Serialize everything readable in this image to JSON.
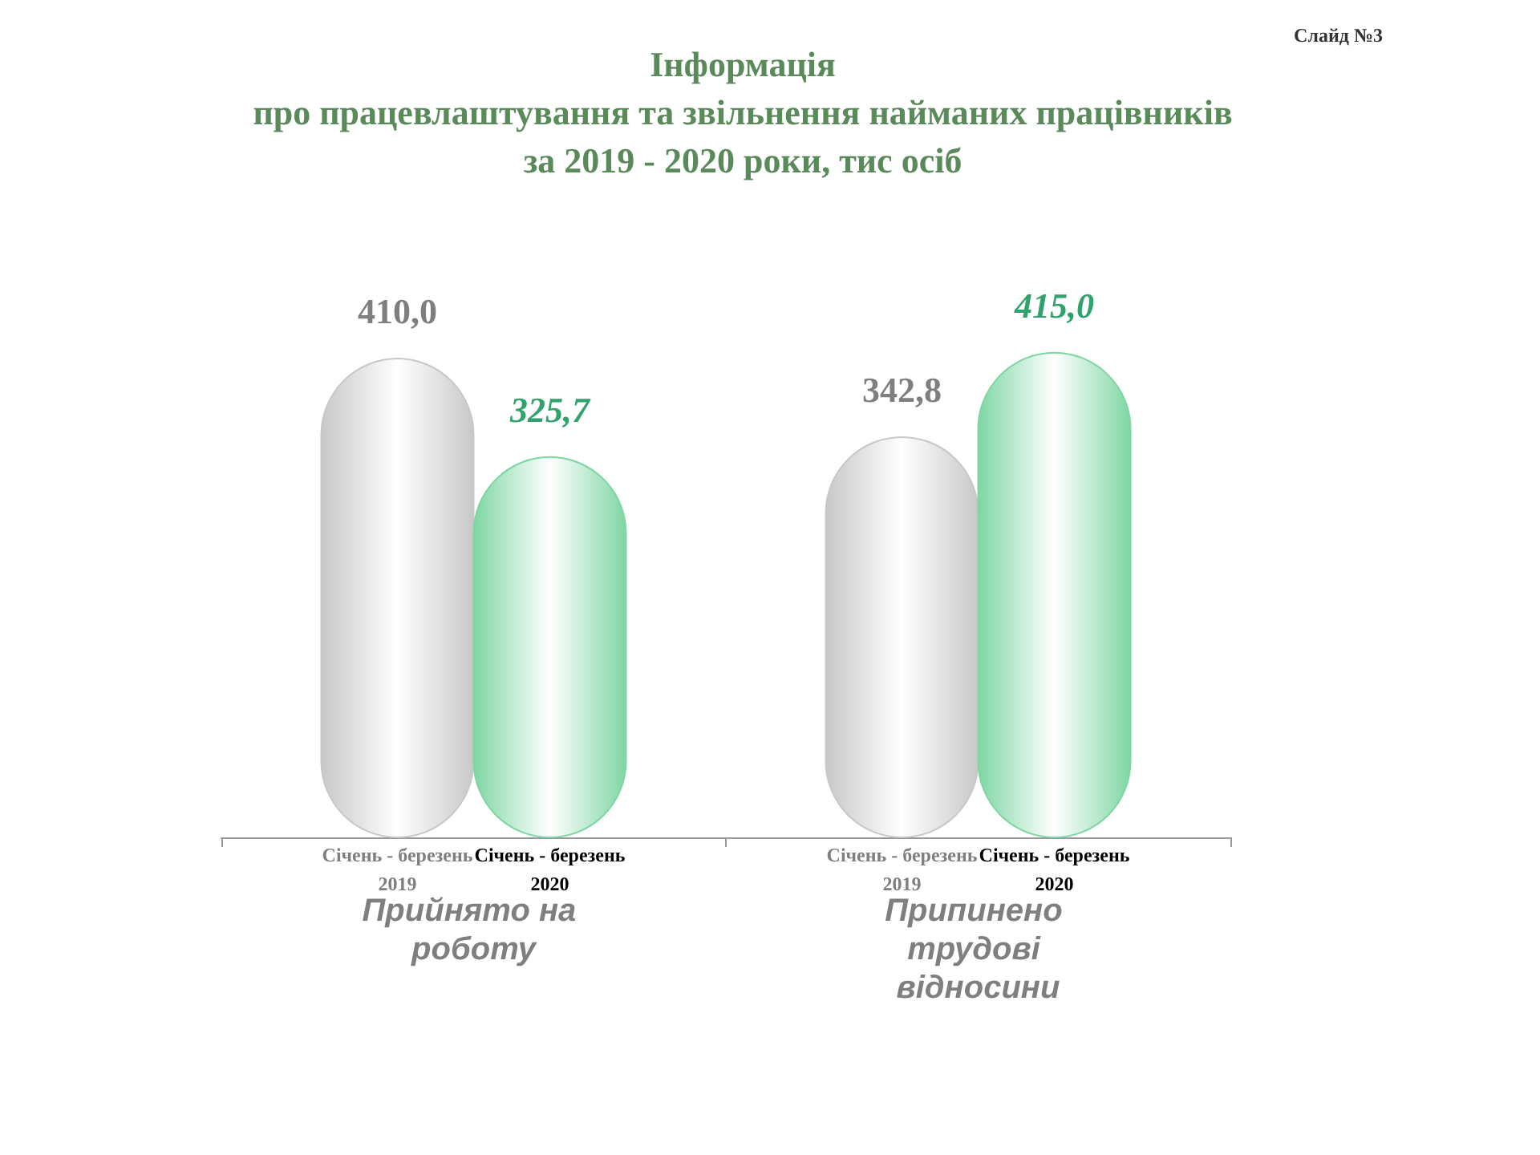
{
  "chart_data": {
    "type": "bar",
    "title": "Інформація\nпро працевлаштування та звільнення найманих працівників\nза 2019 - 2020 роки, тис осіб",
    "annotations": [
      "Слайд №3"
    ],
    "categories": [
      "Прийнято на роботу",
      "Припинено трудові відносини"
    ],
    "series": [
      {
        "name": "Січень - березень 2019",
        "color": "#c8c8c8",
        "values": [
          410.0,
          342.8
        ],
        "value_labels": [
          "410,0",
          "342,8"
        ]
      },
      {
        "name": "Січень - березень 2020",
        "color": "#7fd6a4",
        "values": [
          325.7,
          415.0
        ],
        "value_labels": [
          "325,7",
          "415,0"
        ]
      }
    ],
    "legend": false,
    "grid": false
  }
}
